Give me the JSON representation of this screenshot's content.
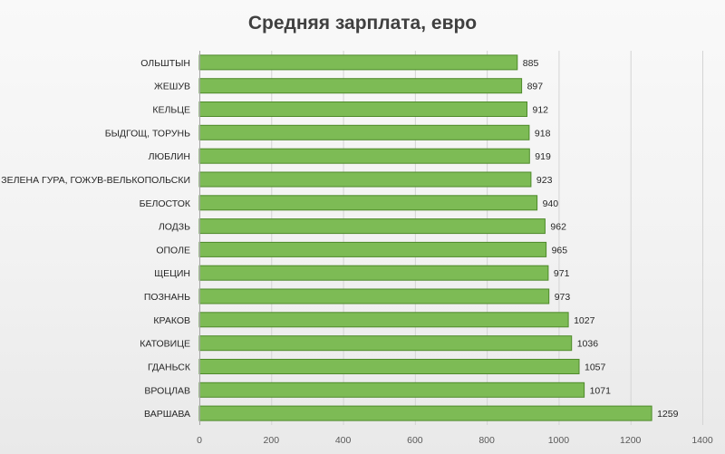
{
  "chart_data": {
    "type": "bar",
    "orientation": "horizontal",
    "title": "Средняя зарплата, евро",
    "xlabel": "",
    "ylabel": "",
    "categories": [
      "ОЛЬШТЫН",
      "ЖЕШУВ",
      "КЕЛЬЦЕ",
      "БЫДГОЩ, ТОРУНЬ",
      "ЛЮБЛИН",
      "ЗЕЛЕНА ГУРА, ГОЖУВ-ВЕЛЬКОПОЛЬСКИ",
      "БЕЛОСТОК",
      "ЛОДЗЬ",
      "ОПОЛЕ",
      "ЩЕЦИН",
      "ПОЗНАНЬ",
      "КРАКОВ",
      "КАТОВИЦЕ",
      "ГДАНЬСК",
      "ВРОЦЛАВ",
      "ВАРШАВА"
    ],
    "values": [
      885,
      897,
      912,
      918,
      919,
      923,
      940,
      962,
      965,
      971,
      973,
      1027,
      1036,
      1057,
      1071,
      1259
    ],
    "xlim": [
      0,
      1400
    ],
    "xticks": [
      0,
      200,
      400,
      600,
      800,
      1000,
      1200,
      1400
    ],
    "grid": true,
    "data_labels": true,
    "legend": "none",
    "bar_color": "#7dbb55",
    "bar_edge_color": "#4e8a2a"
  }
}
